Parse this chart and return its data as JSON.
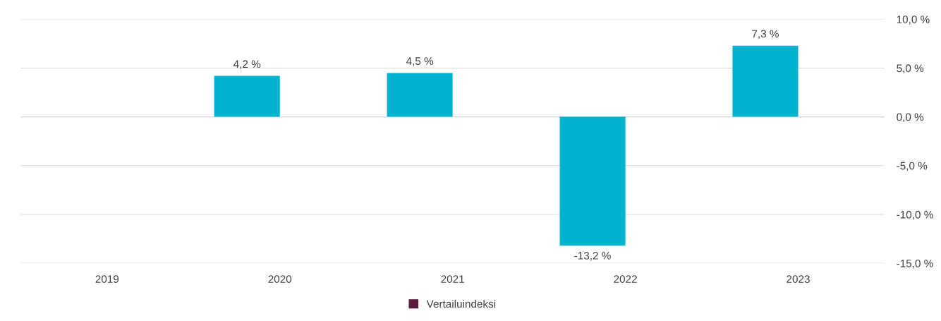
{
  "chart_data": {
    "type": "bar",
    "categories": [
      "2019",
      "2020",
      "2021",
      "2022",
      "2023"
    ],
    "series": [
      {
        "color": "#00b4d0",
        "values": [
          null,
          4.2,
          4.5,
          -13.2,
          7.3
        ],
        "value_labels": [
          null,
          "4,2 %",
          "4,5 %",
          "-13,2 %",
          "7,3 %"
        ]
      },
      {
        "name": "Vertailuindeksi",
        "color": "#5a1a3e",
        "values": [
          null,
          null,
          null,
          null,
          null
        ]
      }
    ],
    "ylim": [
      -15,
      10
    ],
    "yticks": [
      {
        "value": -15,
        "label": "-15,0 %"
      },
      {
        "value": -10,
        "label": "-10,0 %"
      },
      {
        "value": -5,
        "label": "-5,0 %"
      },
      {
        "value": 0,
        "label": "0,0 %"
      },
      {
        "value": 5,
        "label": "5,0 %"
      },
      {
        "value": 10,
        "label": "10,0 %"
      }
    ],
    "grid": "y",
    "legend": "bottom"
  }
}
